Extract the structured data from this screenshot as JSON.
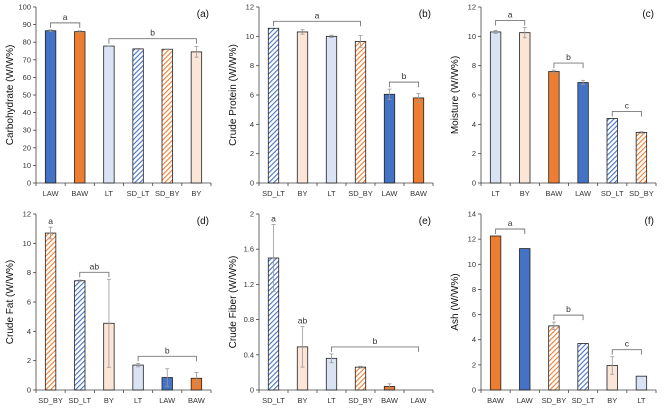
{
  "styles": {
    "LAW": {
      "fill": "#4472C4",
      "hatch": false
    },
    "BAW": {
      "fill": "#ED7D31",
      "hatch": false
    },
    "LT": {
      "fill": "#DAE3F3",
      "hatch": false
    },
    "BY": {
      "fill": "#FBE5D6",
      "hatch": false
    },
    "SD_LT": {
      "fill": "#4472C4",
      "hatch": true
    },
    "SD_BY": {
      "fill": "#ED7D31",
      "hatch": true
    }
  },
  "chart_data": [
    {
      "type": "bar",
      "panel": "(a)",
      "ylabel": "Carbohydrate (W/W%)",
      "ylim": [
        0,
        100
      ],
      "yticks": [
        0,
        10,
        20,
        30,
        40,
        50,
        60,
        70,
        80,
        90,
        100
      ],
      "categories": [
        "LAW",
        "BAW",
        "LT",
        "SD_LT",
        "SD_BY",
        "BY"
      ],
      "values": [
        86.5,
        86,
        77.8,
        76.2,
        76,
        74.5
      ],
      "errors": [
        0.5,
        0.5,
        0.2,
        0.3,
        0.2,
        3
      ],
      "groups": [
        {
          "label": "a",
          "from": 0,
          "to": 1
        },
        {
          "label": "b",
          "from": 2,
          "to": 5
        }
      ]
    },
    {
      "type": "bar",
      "panel": "(b)",
      "ylabel": "Crude Protein (W/W%)",
      "ylim": [
        0,
        12
      ],
      "yticks": [
        0,
        2,
        4,
        6,
        8,
        10,
        12
      ],
      "categories": [
        "SD_LT",
        "BY",
        "LT",
        "SD_BY",
        "LAW",
        "BAW"
      ],
      "values": [
        10.55,
        10.3,
        10.0,
        9.65,
        6.05,
        5.8
      ],
      "errors": [
        0,
        0.15,
        0.08,
        0.4,
        0.35,
        0.3
      ],
      "groups": [
        {
          "label": "a",
          "from": 0,
          "to": 3
        },
        {
          "label": "b",
          "from": 4,
          "to": 5
        }
      ]
    },
    {
      "type": "bar",
      "panel": "(c)",
      "ylabel": "Moisture (W/W%)",
      "ylim": [
        0,
        12
      ],
      "yticks": [
        0,
        2,
        4,
        6,
        8,
        10,
        12
      ],
      "categories": [
        "LT",
        "BY",
        "BAW",
        "LAW",
        "SD_LT",
        "SD_BY"
      ],
      "values": [
        10.3,
        10.25,
        7.6,
        6.85,
        4.4,
        3.45
      ],
      "errors": [
        0.1,
        0.35,
        0.1,
        0.15,
        0,
        0.05
      ],
      "groups": [
        {
          "label": "a",
          "from": 0,
          "to": 1
        },
        {
          "label": "b",
          "from": 2,
          "to": 3
        },
        {
          "label": "c",
          "from": 4,
          "to": 5
        }
      ]
    },
    {
      "type": "bar",
      "panel": "(d)",
      "ylabel": "Crude Fat (W/W%)",
      "ylim": [
        0,
        12
      ],
      "yticks": [
        0,
        2,
        4,
        6,
        8,
        10,
        12
      ],
      "categories": [
        "SD_BY",
        "SD_LT",
        "BY",
        "LT",
        "LAW",
        "BAW"
      ],
      "values": [
        10.7,
        7.45,
        4.55,
        1.7,
        0.85,
        0.8
      ],
      "errors": [
        0.4,
        0.05,
        3.0,
        0.12,
        0.6,
        0.4
      ],
      "groups": [
        {
          "label": "a",
          "from": 0,
          "to": 0
        },
        {
          "label": "ab",
          "from": 1,
          "to": 2
        },
        {
          "label": "b",
          "from": 3,
          "to": 5
        }
      ]
    },
    {
      "type": "bar",
      "panel": "(e)",
      "ylabel": "Crude Fiber (W/W%)",
      "ylim": [
        0,
        2
      ],
      "yticks": [
        0,
        0.4,
        0.8,
        1.2,
        1.6,
        2
      ],
      "categories": [
        "SD_LT",
        "BY",
        "LT",
        "SD_BY",
        "BAW",
        "LAW"
      ],
      "values": [
        1.5,
        0.49,
        0.36,
        0.26,
        0.04,
        0
      ],
      "errors": [
        0.38,
        0.23,
        0.05,
        0.01,
        0.03,
        0
      ],
      "groups": [
        {
          "label": "a",
          "from": 0,
          "to": 0
        },
        {
          "label": "ab",
          "from": 1,
          "to": 1
        },
        {
          "label": "b",
          "from": 2,
          "to": 5
        }
      ]
    },
    {
      "type": "bar",
      "panel": "(f)",
      "ylabel": "Ash (W/W%)",
      "ylim": [
        0,
        14
      ],
      "yticks": [
        0,
        2,
        4,
        6,
        8,
        10,
        12,
        14
      ],
      "categories": [
        "BAW",
        "LAW",
        "SD_BY",
        "SD_LT",
        "BY",
        "LT"
      ],
      "values": [
        12.25,
        11.25,
        5.1,
        3.7,
        1.95,
        1.1
      ],
      "errors": [
        0,
        0,
        0.3,
        0,
        0.7,
        0
      ],
      "groups": [
        {
          "label": "a",
          "from": 0,
          "to": 1
        },
        {
          "label": "b",
          "from": 2,
          "to": 3
        },
        {
          "label": "c",
          "from": 4,
          "to": 5
        }
      ]
    }
  ]
}
